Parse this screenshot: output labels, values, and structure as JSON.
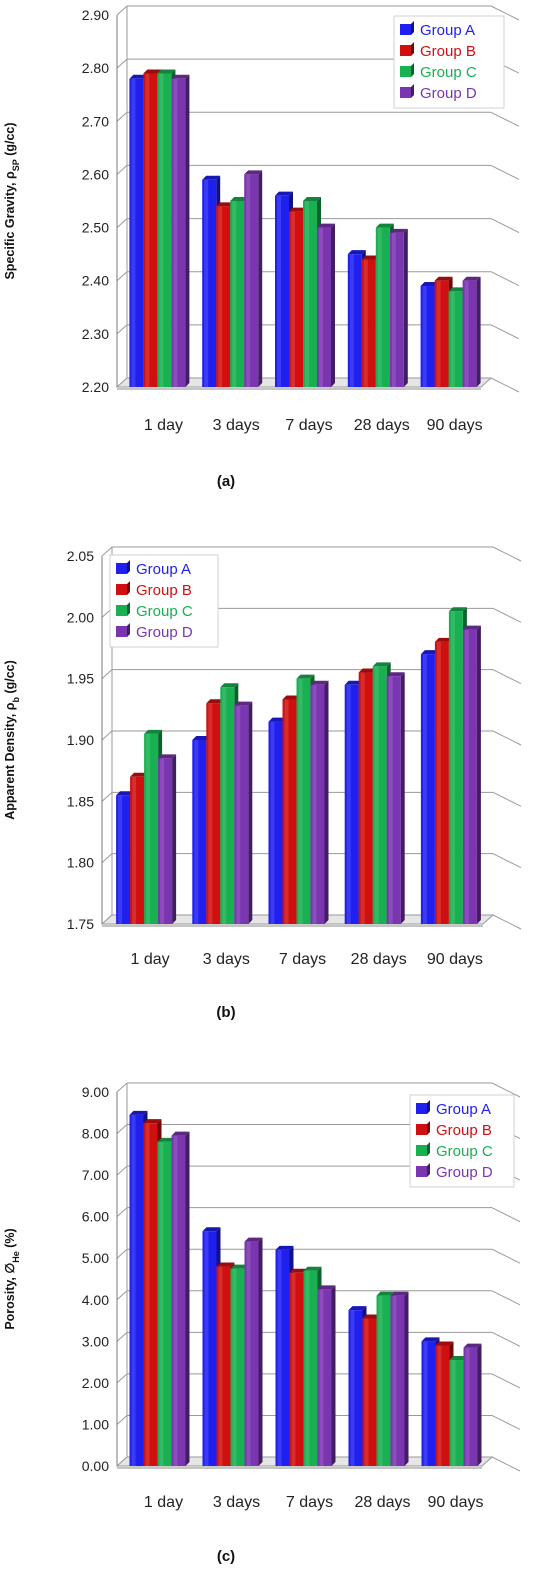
{
  "colors": {
    "Group A": "#1f1ff0",
    "Group B": "#d01010",
    "Group C": "#18b050",
    "Group D": "#7a35b0"
  },
  "panels": [
    {
      "label": "(a)",
      "ylabel_main": "Specific Gravity, ρ",
      "ylabel_sub": "SP",
      "ylabel_tail": " (g/cc)",
      "ticks": [
        "2.20",
        "2.30",
        "2.40",
        "2.50",
        "2.60",
        "2.70",
        "2.80",
        "2.90"
      ]
    },
    {
      "label": "(b)",
      "ylabel_main": "Apparent Density, ρ",
      "ylabel_sub": "b",
      "ylabel_tail": " (g/cc)",
      "ticks": [
        "1.75",
        "1.80",
        "1.85",
        "1.90",
        "1.95",
        "2.00",
        "2.05"
      ]
    },
    {
      "label": "(c)",
      "ylabel_main": "Porosity, ∅",
      "ylabel_sub": "He",
      "ylabel_tail": " (%)",
      "ticks": [
        "0.00",
        "1.00",
        "2.00",
        "3.00",
        "4.00",
        "5.00",
        "6.00",
        "7.00",
        "8.00",
        "9.00"
      ]
    }
  ],
  "chart_data": [
    {
      "type": "bar",
      "title": "",
      "panel_label": "(a)",
      "ylabel": "Specific Gravity, ρSP (g/cc)",
      "xlabel": "",
      "ylim": [
        2.2,
        2.9
      ],
      "categories": [
        "1 day",
        "3 days",
        "7 days",
        "28 days",
        "90 days"
      ],
      "series": [
        {
          "name": "Group A",
          "values": [
            2.78,
            2.59,
            2.56,
            2.45,
            2.39
          ]
        },
        {
          "name": "Group B",
          "values": [
            2.79,
            2.54,
            2.53,
            2.44,
            2.4
          ]
        },
        {
          "name": "Group C",
          "values": [
            2.79,
            2.55,
            2.55,
            2.5,
            2.38
          ]
        },
        {
          "name": "Group D",
          "values": [
            2.78,
            2.6,
            2.5,
            2.49,
            2.4
          ]
        }
      ],
      "legend": "top-right",
      "grid": true
    },
    {
      "type": "bar",
      "title": "",
      "panel_label": "(b)",
      "ylabel": "Apparent Density, ρb (g/cc)",
      "xlabel": "",
      "ylim": [
        1.75,
        2.05
      ],
      "categories": [
        "1 day",
        "3 days",
        "7 days",
        "28 days",
        "90 days"
      ],
      "series": [
        {
          "name": "Group A",
          "values": [
            1.855,
            1.9,
            1.915,
            1.945,
            1.97
          ]
        },
        {
          "name": "Group B",
          "values": [
            1.87,
            1.93,
            1.933,
            1.955,
            1.98
          ]
        },
        {
          "name": "Group C",
          "values": [
            1.905,
            1.943,
            1.95,
            1.96,
            2.005
          ]
        },
        {
          "name": "Group D",
          "values": [
            1.885,
            1.928,
            1.945,
            1.952,
            1.99
          ]
        }
      ],
      "legend": "top-left",
      "grid": true
    },
    {
      "type": "bar",
      "title": "",
      "panel_label": "(c)",
      "ylabel": "Porosity, ∅He (%)",
      "xlabel": "",
      "ylim": [
        0.0,
        9.0
      ],
      "categories": [
        "1 day",
        "3 days",
        "7 days",
        "28 days",
        "90 days"
      ],
      "series": [
        {
          "name": "Group A",
          "values": [
            8.45,
            5.65,
            5.2,
            3.75,
            3.0
          ]
        },
        {
          "name": "Group B",
          "values": [
            8.25,
            4.8,
            4.65,
            3.55,
            2.9
          ]
        },
        {
          "name": "Group C",
          "values": [
            7.8,
            4.75,
            4.7,
            4.1,
            2.55
          ]
        },
        {
          "name": "Group D",
          "values": [
            7.95,
            5.4,
            4.25,
            4.1,
            2.85
          ]
        }
      ],
      "legend": "top-right",
      "grid": true
    }
  ]
}
